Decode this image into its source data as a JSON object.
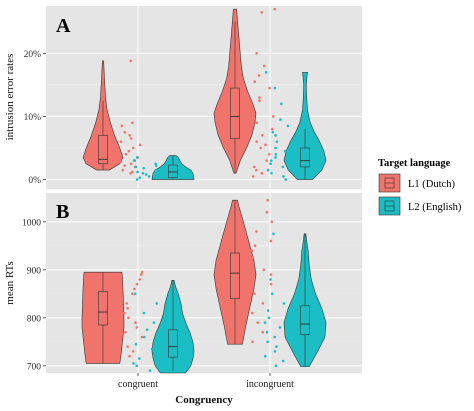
{
  "chart_data": {
    "type": "violin",
    "xlabel": "Congruency",
    "categories": [
      "congruent",
      "incongruent"
    ],
    "legend": {
      "title": "Target language",
      "placement": "right",
      "entries": [
        {
          "label": "L1  (Dutch)",
          "color": "#f0746c"
        },
        {
          "label": "L2  (English)",
          "color": "#1bbec4"
        }
      ]
    },
    "panels": [
      {
        "letter": "A",
        "ylabel": "intrusion error rates",
        "ylim": [
          -1.5,
          27.5
        ],
        "yticks": [
          0,
          10,
          20
        ],
        "ytick_labels": [
          "0%",
          "10%",
          "20%"
        ],
        "grid": true,
        "groups": [
          {
            "category": "congruent",
            "series": "L1  (Dutch)",
            "min": 1.5,
            "q1": 2.5,
            "median": 3.2,
            "q3": 7.0,
            "max": 18.8,
            "whisker_low": 1.5,
            "whisker_high": 12.5,
            "density": [
              [
                1.5,
                0.3
              ],
              [
                2.5,
                0.8
              ],
              [
                3.5,
                0.95
              ],
              [
                5,
                0.8
              ],
              [
                7,
                0.55
              ],
              [
                9,
                0.35
              ],
              [
                11,
                0.2
              ],
              [
                13,
                0.12
              ],
              [
                16,
                0.07
              ],
              [
                18.8,
                0.03
              ]
            ],
            "points": [
              18.8,
              9.0,
              8.5,
              7.5,
              7.0,
              6.5,
              6.0,
              5.5,
              5.0,
              4.5,
              4.0,
              3.5,
              3.0,
              2.8,
              2.5,
              2.2,
              2.0,
              1.5,
              1.2,
              1.0
            ]
          },
          {
            "category": "congruent",
            "series": "L2  (English)",
            "min": 0.0,
            "q1": 0.3,
            "median": 1.2,
            "q3": 2.3,
            "max": 3.8,
            "whisker_low": 0.0,
            "whisker_high": 3.8,
            "density": [
              [
                0,
                1.0
              ],
              [
                0.5,
                0.98
              ],
              [
                1,
                0.95
              ],
              [
                1.5,
                0.85
              ],
              [
                2,
                0.6
              ],
              [
                2.5,
                0.42
              ],
              [
                3,
                0.33
              ],
              [
                3.5,
                0.25
              ],
              [
                3.8,
                0.15
              ]
            ],
            "points": [
              3.5,
              3.0,
              2.5,
              2.2,
              2.0,
              1.8,
              1.5,
              1.2,
              1.0,
              0.8,
              0.5,
              0.3,
              0.0
            ]
          },
          {
            "category": "incongruent",
            "series": "L1  (Dutch)",
            "min": 1.0,
            "q1": 6.5,
            "median": 10.0,
            "q3": 14.5,
            "max": 27.0,
            "whisker_low": 1.0,
            "whisker_high": 25.0,
            "density": [
              [
                1,
                0.05
              ],
              [
                3,
                0.25
              ],
              [
                5,
                0.55
              ],
              [
                7,
                0.8
              ],
              [
                9,
                0.95
              ],
              [
                10.5,
                1.0
              ],
              [
                12,
                0.85
              ],
              [
                14,
                0.6
              ],
              [
                16,
                0.4
              ],
              [
                18,
                0.3
              ],
              [
                20,
                0.25
              ],
              [
                22,
                0.2
              ],
              [
                24,
                0.15
              ],
              [
                26,
                0.1
              ],
              [
                27,
                0.08
              ]
            ],
            "points": [
              27,
              26.5,
              20.0,
              18.0,
              16.5,
              15.5,
              14.5,
              13.0,
              12.5,
              11.0,
              10.0,
              9.0,
              8.0,
              7.0,
              6.0,
              5.5,
              5.0,
              4.0,
              3.0,
              2.0,
              1.5,
              1.0,
              0.5
            ]
          },
          {
            "category": "incongruent",
            "series": "L2  (English)",
            "min": 0.0,
            "q1": 2.0,
            "median": 3.0,
            "q3": 5.0,
            "max": 17.0,
            "whisker_low": 0.0,
            "whisker_high": 8.0,
            "density": [
              [
                0,
                0.35
              ],
              [
                1.5,
                0.8
              ],
              [
                3,
                1.0
              ],
              [
                4.5,
                0.9
              ],
              [
                6,
                0.7
              ],
              [
                7.5,
                0.45
              ],
              [
                9,
                0.25
              ],
              [
                11,
                0.12
              ],
              [
                13,
                0.08
              ],
              [
                15,
                0.06
              ],
              [
                16.5,
                0.1
              ],
              [
                17,
                0.12
              ]
            ],
            "points": [
              17.0,
              14.5,
              12.0,
              9.5,
              8.5,
              7.5,
              7.0,
              6.0,
              5.0,
              4.5,
              4.0,
              3.5,
              3.0,
              2.5,
              2.0,
              1.5,
              1.0,
              0.5,
              0.0
            ]
          }
        ]
      },
      {
        "letter": "B",
        "ylabel": "mean RTs",
        "ylim": [
          685,
          1060
        ],
        "yticks": [
          700,
          800,
          900,
          1000
        ],
        "ytick_labels": [
          "700",
          "800",
          "900",
          "1000"
        ],
        "grid": true,
        "groups": [
          {
            "category": "congruent",
            "series": "L1  (Dutch)",
            "min": 705,
            "q1": 785,
            "median": 812,
            "q3": 855,
            "max": 895,
            "whisker_low": 705,
            "whisker_high": 895,
            "density": [
              [
                705,
                0.8
              ],
              [
                720,
                0.85
              ],
              [
                740,
                0.9
              ],
              [
                760,
                0.95
              ],
              [
                780,
                1.0
              ],
              [
                800,
                1.0
              ],
              [
                820,
                0.98
              ],
              [
                840,
                0.97
              ],
              [
                860,
                0.95
              ],
              [
                880,
                0.93
              ],
              [
                895,
                0.9
              ]
            ],
            "points": [
              895,
              890,
              880,
              870,
              860,
              850,
              840,
              830,
              820,
              810,
              800,
              790,
              780,
              770,
              760,
              750,
              740,
              730,
              720
            ]
          },
          {
            "category": "congruent",
            "series": "L2  (English)",
            "min": 685,
            "q1": 718,
            "median": 740,
            "q3": 775,
            "max": 878,
            "whisker_low": 690,
            "whisker_high": 878,
            "density": [
              [
                685,
                0.6
              ],
              [
                700,
                0.85
              ],
              [
                715,
                0.95
              ],
              [
                730,
                1.0
              ],
              [
                750,
                0.95
              ],
              [
                770,
                0.8
              ],
              [
                790,
                0.6
              ],
              [
                810,
                0.45
              ],
              [
                830,
                0.38
              ],
              [
                850,
                0.25
              ],
              [
                865,
                0.12
              ],
              [
                878,
                0.05
              ]
            ],
            "points": [
              850,
              830,
              810,
              790,
              775,
              760,
              745,
              735,
              725,
              715,
              705,
              700,
              690
            ]
          },
          {
            "category": "incongruent",
            "series": "L1  (Dutch)",
            "min": 745,
            "q1": 840,
            "median": 893,
            "q3": 935,
            "max": 1045,
            "whisker_low": 745,
            "whisker_high": 1045,
            "density": [
              [
                745,
                0.35
              ],
              [
                780,
                0.5
              ],
              [
                820,
                0.7
              ],
              [
                860,
                0.9
              ],
              [
                890,
                1.0
              ],
              [
                920,
                0.9
              ],
              [
                960,
                0.65
              ],
              [
                1000,
                0.4
              ],
              [
                1030,
                0.2
              ],
              [
                1045,
                0.12
              ]
            ],
            "points": [
              1045,
              1020,
              1000,
              980,
              960,
              950,
              940,
              925,
              910,
              900,
              890,
              870,
              850,
              830,
              810,
              790,
              770,
              750
            ]
          },
          {
            "category": "incongruent",
            "series": "L2  (English)",
            "min": 698,
            "q1": 765,
            "median": 787,
            "q3": 825,
            "max": 975,
            "whisker_low": 700,
            "whisker_high": 975,
            "density": [
              [
                698,
                0.2
              ],
              [
                730,
                0.6
              ],
              [
                760,
                0.95
              ],
              [
                790,
                1.0
              ],
              [
                820,
                0.8
              ],
              [
                850,
                0.5
              ],
              [
                880,
                0.3
              ],
              [
                910,
                0.2
              ],
              [
                940,
                0.15
              ],
              [
                960,
                0.08
              ],
              [
                975,
                0.04
              ]
            ],
            "points": [
              975,
              880,
              850,
              830,
              815,
              800,
              790,
              780,
              770,
              760,
              750,
              740,
              730,
              720,
              710,
              700
            ]
          }
        ]
      }
    ]
  }
}
